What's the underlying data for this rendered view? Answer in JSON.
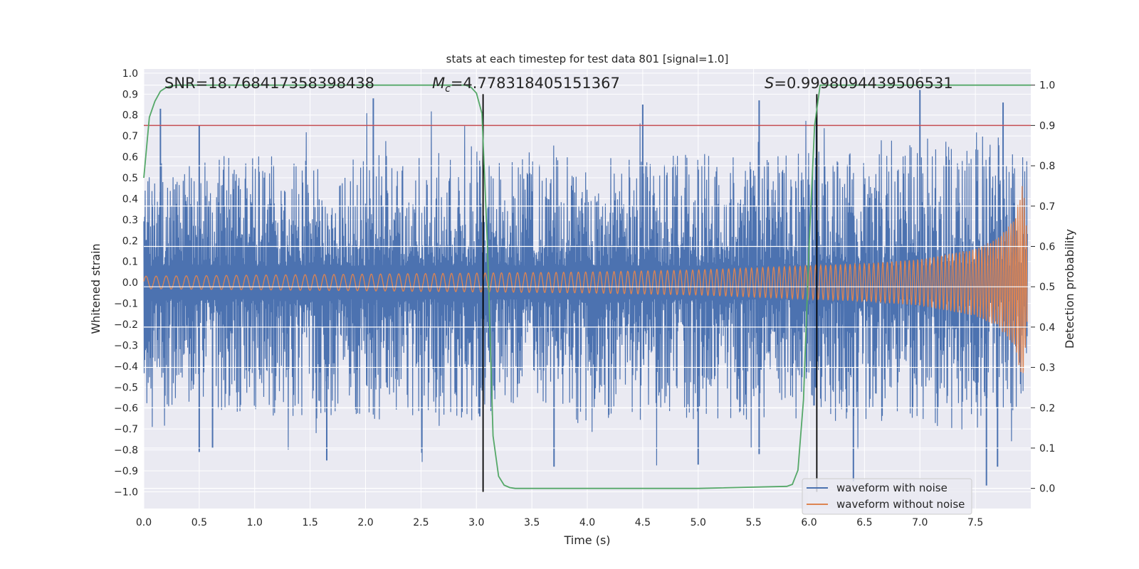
{
  "chart_data": {
    "type": "line",
    "title": "stats at each timestep for test data 801 [signal=1.0]",
    "xlabel": "Time (s)",
    "ylabel_left": "Whitened strain",
    "ylabel_right": "Detection probability",
    "xlim": [
      0.0,
      8.0
    ],
    "ylim_left": [
      -1.08,
      1.02
    ],
    "ylim_right": [
      -0.05,
      1.04
    ],
    "x_ticks": [
      "0.0",
      "0.5",
      "1.0",
      "1.5",
      "2.0",
      "2.5",
      "3.0",
      "3.5",
      "4.0",
      "4.5",
      "5.0",
      "5.5",
      "6.0",
      "6.5",
      "7.0",
      "7.5"
    ],
    "y_ticks_left": [
      "1.0",
      "0.9",
      "0.8",
      "0.7",
      "0.6",
      "0.5",
      "0.4",
      "0.3",
      "0.2",
      "0.1",
      "0.0",
      "-0.1",
      "-0.2",
      "-0.3",
      "-0.4",
      "-0.5",
      "-0.6",
      "-0.7",
      "-0.8",
      "-0.9",
      "-1.0"
    ],
    "y_ticks_right": [
      "1.0",
      "0.9",
      "0.8",
      "0.7",
      "0.6",
      "0.5",
      "0.4",
      "0.3",
      "0.2",
      "0.1",
      "0.0"
    ],
    "grid": true,
    "annotations": {
      "snr": "SNR=18.768417358398438",
      "mc_symbol": "M",
      "mc_sub": "c",
      "mc_value": "=4.778318405151367",
      "s_symbol": "S",
      "s_value": "=0.9998094439506531"
    },
    "legend": {
      "placement": "lower-right",
      "entries": [
        "waveform with noise",
        "waveform without noise"
      ]
    },
    "colors": {
      "noise": "#4c72b0",
      "clean": "#dd8452",
      "probability": "#55a868",
      "threshold": "#c44e52",
      "vline": "#000000",
      "background": "#eaeaf2",
      "grid": "#ffffff"
    },
    "series": [
      {
        "name": "waveform with noise",
        "axis": "left",
        "envelope_x": [
          0.0,
          0.5,
          1.0,
          1.5,
          2.0,
          2.5,
          3.0,
          3.5,
          4.0,
          4.5,
          5.0,
          5.5,
          6.0,
          6.5,
          7.0,
          7.5,
          7.9
        ],
        "upper_typical": [
          0.45,
          0.5,
          0.5,
          0.52,
          0.5,
          0.52,
          0.5,
          0.52,
          0.5,
          0.5,
          0.52,
          0.5,
          0.52,
          0.55,
          0.6,
          0.62,
          0.55
        ],
        "lower_typical": [
          -0.5,
          -0.52,
          -0.52,
          -0.55,
          -0.55,
          -0.55,
          -0.55,
          -0.55,
          -0.57,
          -0.55,
          -0.55,
          -0.55,
          -0.55,
          -0.55,
          -0.57,
          -0.6,
          -0.6
        ],
        "spikes": [
          [
            0.15,
            0.83
          ],
          [
            0.5,
            0.75
          ],
          [
            2.07,
            0.88
          ],
          [
            4.5,
            0.85
          ],
          [
            5.55,
            0.87
          ],
          [
            7.0,
            0.92
          ],
          [
            7.75,
            0.86
          ],
          [
            0.5,
            -0.81
          ],
          [
            0.62,
            -0.79
          ],
          [
            1.65,
            -0.85
          ],
          [
            3.03,
            -0.64
          ],
          [
            3.7,
            -0.88
          ],
          [
            5.0,
            -0.87
          ],
          [
            5.55,
            -0.82
          ],
          [
            6.4,
            -0.95
          ],
          [
            7.6,
            -0.97
          ],
          [
            7.7,
            -0.88
          ]
        ]
      },
      {
        "name": "waveform without noise",
        "axis": "left",
        "envelope_x": [
          0.0,
          1.0,
          2.0,
          3.0,
          4.0,
          5.0,
          6.0,
          6.5,
          7.0,
          7.5,
          7.7,
          7.85,
          7.93,
          7.97
        ],
        "amplitude": [
          0.03,
          0.035,
          0.04,
          0.045,
          0.05,
          0.06,
          0.08,
          0.09,
          0.11,
          0.16,
          0.21,
          0.3,
          0.48,
          0.2
        ]
      },
      {
        "name": "detection probability",
        "axis": "right",
        "x": [
          0.0,
          0.05,
          0.1,
          0.15,
          0.2,
          0.25,
          0.3,
          0.4,
          0.6,
          1.0,
          2.0,
          2.9,
          2.95,
          3.0,
          3.05,
          3.1,
          3.15,
          3.2,
          3.25,
          3.3,
          3.35,
          4.0,
          5.0,
          5.8,
          5.85,
          5.9,
          5.95,
          6.0,
          6.05,
          6.1,
          6.15,
          6.2,
          7.0,
          8.0
        ],
        "y": [
          0.77,
          0.92,
          0.96,
          0.985,
          0.994,
          0.998,
          1.0,
          1.0,
          1.0,
          1.0,
          1.0,
          1.0,
          0.995,
          0.98,
          0.93,
          0.6,
          0.13,
          0.03,
          0.008,
          0.002,
          0.0,
          0.0,
          0.0,
          0.005,
          0.01,
          0.045,
          0.22,
          0.6,
          0.9,
          1.0,
          1.0,
          1.0,
          1.0,
          1.0
        ]
      },
      {
        "name": "threshold",
        "axis": "right",
        "y": 0.9
      }
    ],
    "vlines_x": [
      3.06,
      6.07
    ],
    "vlines_ymax_left": 0.9,
    "vlines_ymin_left": -1.0
  }
}
